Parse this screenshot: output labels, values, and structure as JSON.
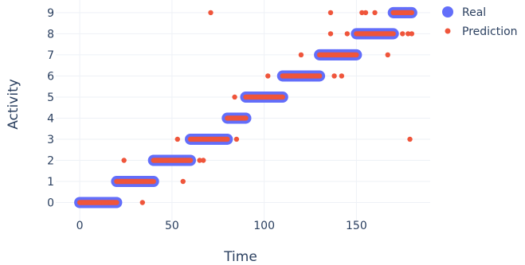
{
  "chart_data": {
    "type": "scatter",
    "title": "",
    "xlabel": "Time",
    "ylabel": "Activity",
    "xlim": [
      -13,
      190
    ],
    "ylim": [
      -1.15,
      9.6
    ],
    "x_ticks": [
      0,
      50,
      100,
      150
    ],
    "y_ticks": [
      0,
      1,
      2,
      3,
      4,
      5,
      6,
      7,
      8,
      9
    ],
    "grid": true,
    "legend_position": "top-right",
    "series": [
      {
        "name": "Real",
        "color": "#636efa",
        "marker": "circle",
        "segments": [
          {
            "x_start": 0,
            "x_end": 20,
            "y": 0
          },
          {
            "x_start": 20,
            "x_end": 40,
            "y": 1
          },
          {
            "x_start": 40,
            "x_end": 60,
            "y": 2
          },
          {
            "x_start": 60,
            "x_end": 80,
            "y": 3
          },
          {
            "x_start": 80,
            "x_end": 90,
            "y": 4
          },
          {
            "x_start": 90,
            "x_end": 110,
            "y": 5
          },
          {
            "x_start": 110,
            "x_end": 130,
            "y": 6
          },
          {
            "x_start": 130,
            "x_end": 150,
            "y": 7
          },
          {
            "x_start": 150,
            "x_end": 170,
            "y": 8
          },
          {
            "x_start": 170,
            "x_end": 180,
            "y": 9
          }
        ]
      },
      {
        "name": "Prediction",
        "color": "#ef553b",
        "marker": "circle",
        "segments": [
          {
            "x_start": 0,
            "x_end": 20,
            "y": 0
          },
          {
            "x_start": 20,
            "x_end": 40,
            "y": 1
          },
          {
            "x_start": 40,
            "x_end": 60,
            "y": 2
          },
          {
            "x_start": 60,
            "x_end": 80,
            "y": 3
          },
          {
            "x_start": 80,
            "x_end": 90,
            "y": 4
          },
          {
            "x_start": 90,
            "x_end": 110,
            "y": 5
          },
          {
            "x_start": 110,
            "x_end": 130,
            "y": 6
          },
          {
            "x_start": 130,
            "x_end": 150,
            "y": 7
          },
          {
            "x_start": 150,
            "x_end": 170,
            "y": 8
          },
          {
            "x_start": 170,
            "x_end": 180,
            "y": 9
          }
        ],
        "outliers": [
          {
            "x": 24,
            "y": 2
          },
          {
            "x": 34,
            "y": 0
          },
          {
            "x": 53,
            "y": 3
          },
          {
            "x": 56,
            "y": 1
          },
          {
            "x": 65,
            "y": 2
          },
          {
            "x": 67,
            "y": 2
          },
          {
            "x": 71,
            "y": 9
          },
          {
            "x": 84,
            "y": 5
          },
          {
            "x": 85,
            "y": 3
          },
          {
            "x": 102,
            "y": 6
          },
          {
            "x": 120,
            "y": 7
          },
          {
            "x": 136,
            "y": 9
          },
          {
            "x": 136,
            "y": 8
          },
          {
            "x": 138,
            "y": 6
          },
          {
            "x": 142,
            "y": 6
          },
          {
            "x": 145,
            "y": 8
          },
          {
            "x": 153,
            "y": 9
          },
          {
            "x": 155,
            "y": 9
          },
          {
            "x": 160,
            "y": 9
          },
          {
            "x": 167,
            "y": 7
          },
          {
            "x": 175,
            "y": 8
          },
          {
            "x": 178,
            "y": 8
          },
          {
            "x": 180,
            "y": 8
          },
          {
            "x": 179,
            "y": 3
          }
        ]
      }
    ]
  }
}
